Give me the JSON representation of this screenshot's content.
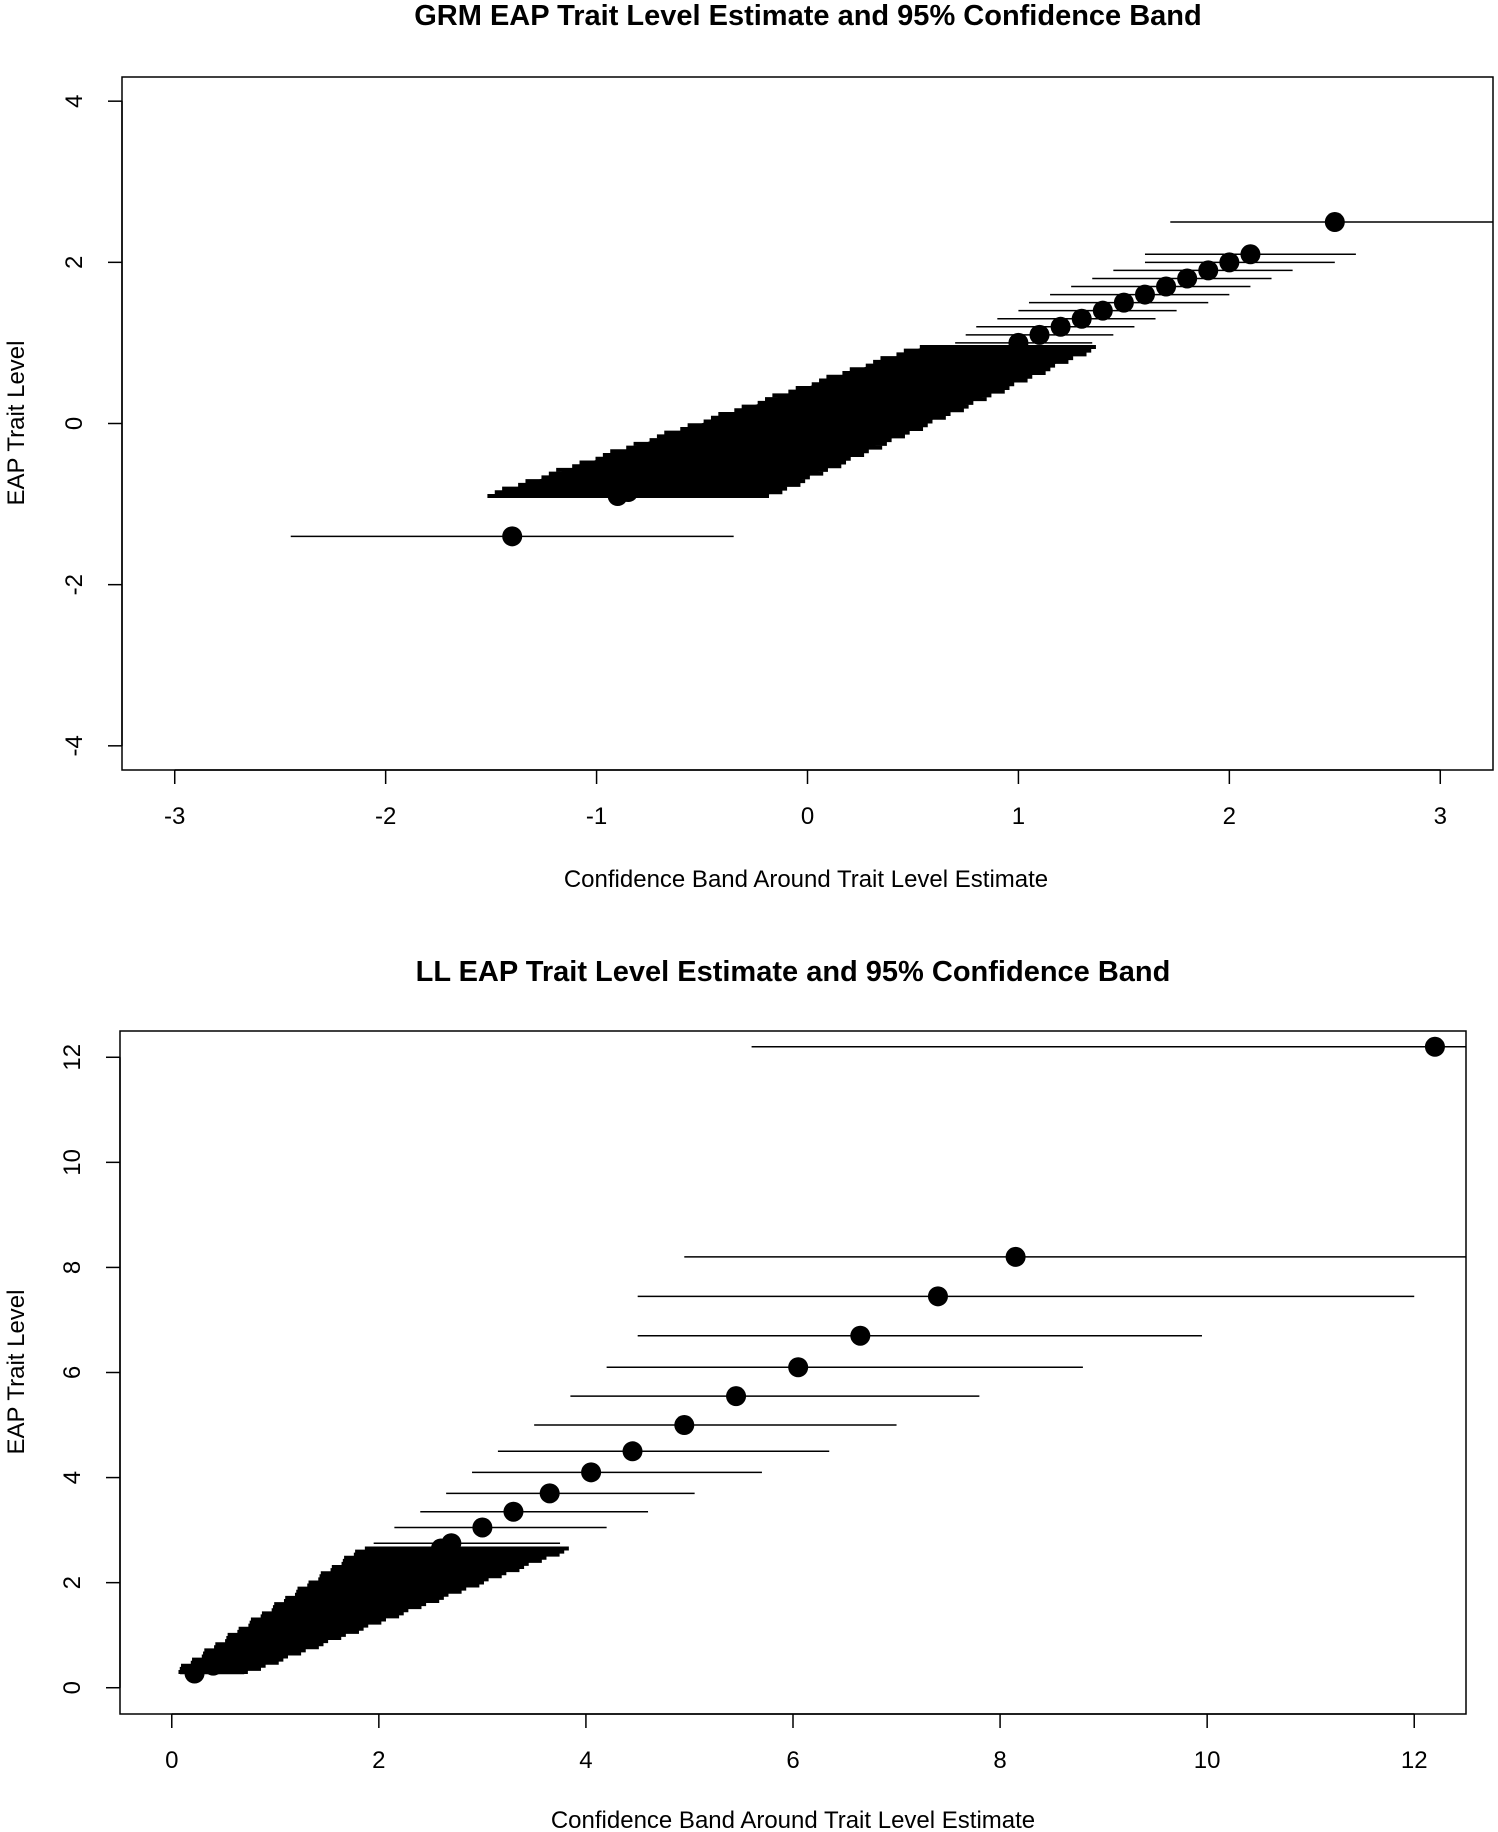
{
  "chart_data": [
    {
      "type": "scatter",
      "title": "GRM EAP Trait Level Estimate and 95% Confidence Band",
      "xlabel": "Confidence Band Around Trait Level Estimate",
      "ylabel": "EAP Trait Level",
      "xlim": [
        -3.25,
        3.25
      ],
      "ylim": [
        -4.3,
        4.3
      ],
      "xticks": [
        -3,
        -2,
        -1,
        0,
        1,
        2,
        3
      ],
      "yticks": [
        -4,
        -2,
        0,
        2,
        4
      ],
      "xtick_labels": [
        "-3",
        "-2",
        "-1",
        "0",
        "1",
        "2",
        "3"
      ],
      "ytick_labels": [
        "-4",
        "-2",
        "0",
        "2",
        "4"
      ],
      "grid": false,
      "legend": "none",
      "dense_band": {
        "description_of_shape": "mass of overlapping confidence intervals",
        "from": {
          "y": -0.9,
          "x_low": -1.5,
          "x_high": -0.2
        },
        "to": {
          "y": 0.95,
          "x_low": 0.55,
          "x_high": 1.35
        }
      },
      "points": [
        {
          "x": -1.4,
          "y": -1.4,
          "lo": -2.45,
          "hi": -0.35
        },
        {
          "x": -0.9,
          "y": -0.9,
          "lo": -1.5,
          "hi": -0.2
        },
        {
          "x": -0.85,
          "y": -0.85,
          "lo": -1.45,
          "hi": -0.2
        },
        {
          "x": 1.0,
          "y": 1.0,
          "lo": 0.7,
          "hi": 1.35
        },
        {
          "x": 1.1,
          "y": 1.1,
          "lo": 0.75,
          "hi": 1.45
        },
        {
          "x": 1.2,
          "y": 1.2,
          "lo": 0.8,
          "hi": 1.55
        },
        {
          "x": 1.3,
          "y": 1.3,
          "lo": 0.9,
          "hi": 1.65
        },
        {
          "x": 1.4,
          "y": 1.4,
          "lo": 1.0,
          "hi": 1.75
        },
        {
          "x": 1.5,
          "y": 1.5,
          "lo": 1.05,
          "hi": 1.9
        },
        {
          "x": 1.6,
          "y": 1.6,
          "lo": 1.15,
          "hi": 2.0
        },
        {
          "x": 1.7,
          "y": 1.7,
          "lo": 1.25,
          "hi": 2.1
        },
        {
          "x": 1.8,
          "y": 1.8,
          "lo": 1.35,
          "hi": 2.2
        },
        {
          "x": 1.9,
          "y": 1.9,
          "lo": 1.45,
          "hi": 2.3
        },
        {
          "x": 2.0,
          "y": 2.0,
          "lo": 1.6,
          "hi": 2.5
        },
        {
          "x": 2.1,
          "y": 2.1,
          "lo": 1.6,
          "hi": 2.6
        },
        {
          "x": 2.5,
          "y": 2.5,
          "lo": 1.72,
          "hi": 3.25
        }
      ]
    },
    {
      "type": "scatter",
      "title": "LL EAP Trait Level Estimate and 95% Confidence Band",
      "xlabel": "Confidence Band Around Trait Level Estimate",
      "ylabel": "EAP Trait Level",
      "xlim": [
        -0.5,
        12.5
      ],
      "ylim": [
        -0.5,
        12.5
      ],
      "xticks": [
        0,
        2,
        4,
        6,
        8,
        10,
        12
      ],
      "yticks": [
        0,
        2,
        4,
        6,
        8,
        10,
        12
      ],
      "xtick_labels": [
        "0",
        "2",
        "4",
        "6",
        "8",
        "10",
        "12"
      ],
      "ytick_labels": [
        "0",
        "2",
        "4",
        "6",
        "8",
        "10",
        "12"
      ],
      "grid": false,
      "legend": "none",
      "dense_band": {
        "description_of_shape": "mass of overlapping confidence intervals",
        "from": {
          "y": 0.3,
          "x_low": 0.1,
          "x_high": 0.7
        },
        "to": {
          "y": 2.65,
          "x_low": 1.9,
          "x_high": 3.8
        }
      },
      "points": [
        {
          "x": 0.22,
          "y": 0.27,
          "lo": 0.08,
          "hi": 0.7
        },
        {
          "x": 0.4,
          "y": 0.42,
          "lo": 0.15,
          "hi": 0.9
        },
        {
          "x": 2.6,
          "y": 2.65,
          "lo": 1.9,
          "hi": 3.8
        },
        {
          "x": 2.7,
          "y": 2.75,
          "lo": 1.95,
          "hi": 3.75
        },
        {
          "x": 3.0,
          "y": 3.05,
          "lo": 2.15,
          "hi": 4.2
        },
        {
          "x": 3.3,
          "y": 3.35,
          "lo": 2.4,
          "hi": 4.6
        },
        {
          "x": 3.65,
          "y": 3.7,
          "lo": 2.65,
          "hi": 5.05
        },
        {
          "x": 4.05,
          "y": 4.1,
          "lo": 2.9,
          "hi": 5.7
        },
        {
          "x": 4.45,
          "y": 4.5,
          "lo": 3.15,
          "hi": 6.35
        },
        {
          "x": 4.95,
          "y": 5.0,
          "lo": 3.5,
          "hi": 7.0
        },
        {
          "x": 5.45,
          "y": 5.55,
          "lo": 3.85,
          "hi": 7.8
        },
        {
          "x": 6.05,
          "y": 6.1,
          "lo": 4.2,
          "hi": 8.8
        },
        {
          "x": 6.65,
          "y": 6.7,
          "lo": 4.5,
          "hi": 9.95
        },
        {
          "x": 7.4,
          "y": 7.45,
          "lo": 4.5,
          "hi": 12.0
        },
        {
          "x": 8.15,
          "y": 8.2,
          "lo": 4.95,
          "hi": 12.5
        },
        {
          "x": 12.2,
          "y": 12.2,
          "lo": 5.6,
          "hi": 12.5
        }
      ]
    }
  ]
}
